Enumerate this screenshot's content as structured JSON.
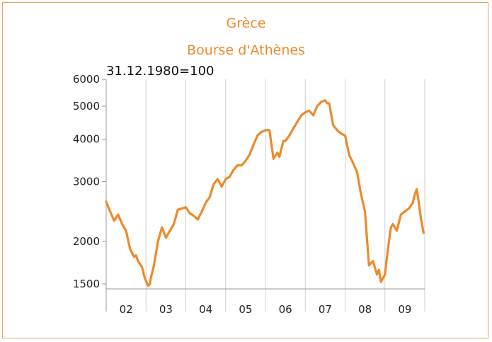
{
  "chart_data": {
    "type": "line",
    "title": "Grèce",
    "subtitle": "Bourse d'Athènes",
    "annotation": "31.12.1980=100",
    "y_scale": "log",
    "ylim": [
      1450,
      6000
    ],
    "y_ticks": [
      {
        "value": 1500,
        "label": "1500"
      },
      {
        "value": 2000,
        "label": "2000"
      },
      {
        "value": 3000,
        "label": "3000"
      },
      {
        "value": 4000,
        "label": "4000"
      },
      {
        "value": 5000,
        "label": "5000"
      },
      {
        "value": 6000,
        "label": "6000"
      }
    ],
    "x_ticks": [
      "02",
      "03",
      "04",
      "05",
      "06",
      "07",
      "08",
      "09"
    ],
    "xlim": [
      2002.0,
      2010.0
    ],
    "line_color": "#ec8a2c",
    "grid": "vertical",
    "series": [
      {
        "x": [
          2002.0,
          2002.02,
          2002.1,
          2002.2,
          2002.3,
          2002.4,
          2002.5,
          2002.6,
          2002.7,
          2002.75,
          2002.8,
          2002.9,
          2002.97,
          2003.05,
          2003.1,
          2003.12,
          2003.2,
          2003.3,
          2003.4,
          2003.5,
          2003.6,
          2003.7,
          2003.8,
          2003.9,
          2004.0,
          2004.1,
          2004.2,
          2004.3,
          2004.4,
          2004.5,
          2004.6,
          2004.7,
          2004.8,
          2004.9,
          2005.0,
          2005.1,
          2005.2,
          2005.3,
          2005.4,
          2005.5,
          2005.6,
          2005.7,
          2005.8,
          2005.9,
          2006.0,
          2006.1,
          2006.2,
          2006.3,
          2006.35,
          2006.4,
          2006.45,
          2006.5,
          2006.6,
          2006.7,
          2006.8,
          2006.9,
          2007.0,
          2007.1,
          2007.2,
          2007.3,
          2007.4,
          2007.5,
          2007.55,
          2007.6,
          2007.7,
          2007.8,
          2007.9,
          2008.0,
          2008.1,
          2008.2,
          2008.3,
          2008.4,
          2008.5,
          2008.6,
          2008.7,
          2008.8,
          2008.85,
          2008.9,
          2009.0,
          2009.05,
          2009.1,
          2009.15,
          2009.2,
          2009.3,
          2009.4,
          2009.5,
          2009.6,
          2009.7,
          2009.75,
          2009.8,
          2009.85,
          2009.9,
          2009.97
        ],
        "y": [
          2620,
          2580,
          2450,
          2300,
          2400,
          2250,
          2150,
          1900,
          1800,
          1820,
          1750,
          1680,
          1560,
          1480,
          1500,
          1560,
          1700,
          2000,
          2200,
          2050,
          2150,
          2250,
          2480,
          2500,
          2520,
          2420,
          2380,
          2320,
          2450,
          2600,
          2700,
          2950,
          3050,
          2900,
          3050,
          3100,
          3250,
          3350,
          3350,
          3450,
          3600,
          3850,
          4100,
          4200,
          4250,
          4250,
          3500,
          3650,
          3550,
          3750,
          3950,
          3950,
          4100,
          4300,
          4500,
          4700,
          4800,
          4850,
          4700,
          5000,
          5150,
          5200,
          5100,
          5100,
          4400,
          4250,
          4150,
          4100,
          3600,
          3400,
          3200,
          2750,
          2450,
          1700,
          1750,
          1600,
          1650,
          1520,
          1600,
          1800,
          2000,
          2200,
          2250,
          2150,
          2400,
          2450,
          2500,
          2600,
          2750,
          2850,
          2600,
          2350,
          2120
        ]
      }
    ]
  }
}
